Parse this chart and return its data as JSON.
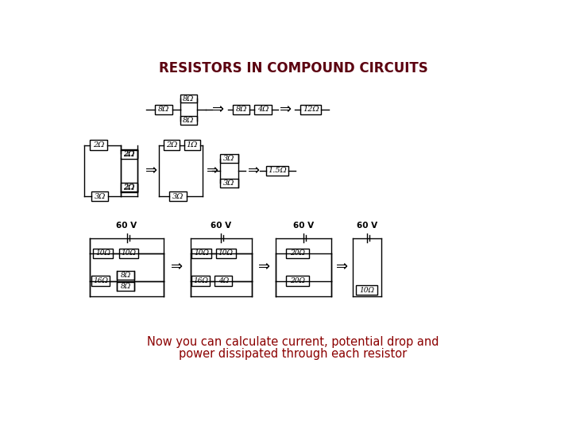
{
  "title": "RESISTORS IN COMPOUND CIRCUITS",
  "subtitle_line1": "Now you can calculate current, potential drop and",
  "subtitle_line2": "power dissipated through each resistor",
  "title_color": "#5B0010",
  "subtitle_color": "#8B0000",
  "bg_color": "#FFFFFF",
  "title_fontsize": 12,
  "subtitle_fontsize": 10.5
}
